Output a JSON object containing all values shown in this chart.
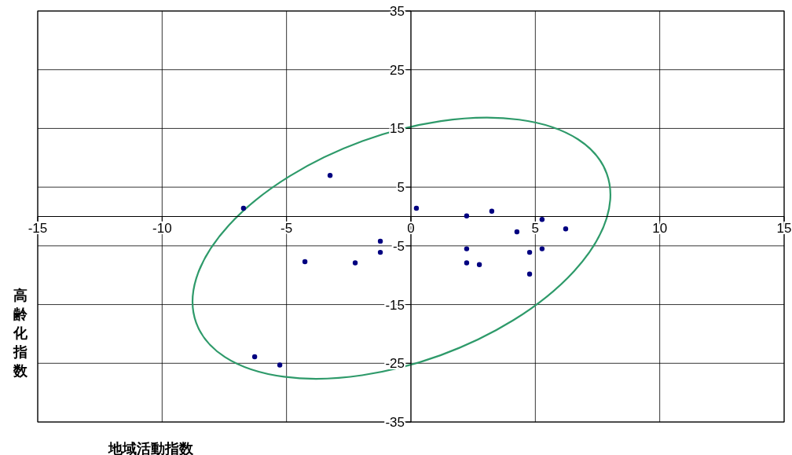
{
  "chart_data": {
    "type": "scatter",
    "xlabel": "地域活動指数",
    "ylabel": "高齢化指数",
    "xlim": [
      -15,
      15
    ],
    "ylim": [
      -35,
      35
    ],
    "xticks": [
      -15,
      -10,
      -5,
      0,
      5,
      10,
      15
    ],
    "yticks": [
      -35,
      -25,
      -15,
      -5,
      5,
      15,
      25,
      35
    ],
    "grid": true,
    "marker": "circle",
    "series": [
      {
        "color": "#000080",
        "x": [
          -6.73,
          -3.25,
          -4.26,
          -2.24,
          -1.23,
          -1.23,
          -6.28,
          -5.27,
          0.22,
          2.24,
          3.25,
          2.24,
          2.24,
          2.75,
          4.26,
          5.27,
          6.22,
          4.77,
          5.27,
          4.77
        ],
        "values": [
          1.4,
          7.0,
          -7.7,
          -7.9,
          -4.2,
          -6.1,
          -23.9,
          -25.3,
          1.4,
          0.1,
          0.9,
          -5.5,
          -7.9,
          -8.2,
          -2.6,
          -0.5,
          -2.1,
          -6.1,
          -5.5,
          -9.8
        ]
      }
    ]
  }
}
